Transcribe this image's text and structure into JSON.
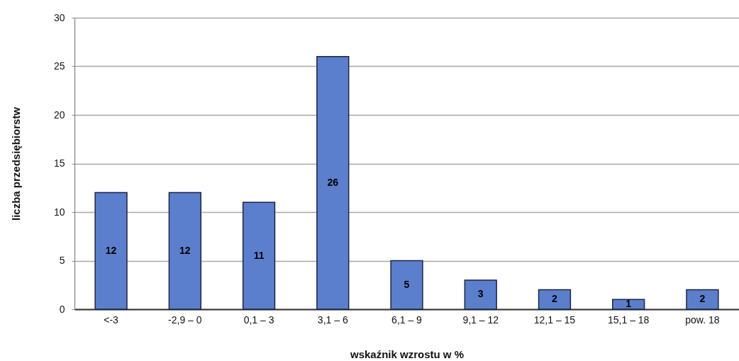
{
  "chart_data": {
    "type": "bar",
    "xlabel": "wskaźnik wzrostu w %",
    "ylabel": "liczba przedsiębiorstw",
    "categories": [
      "<-3",
      "-2,9 – 0",
      "0,1 – 3",
      "3,1 – 6",
      "6,1 – 9",
      "9,1 – 12",
      "12,1 – 15",
      "15,1 – 18",
      "pow. 18"
    ],
    "values": [
      12,
      12,
      11,
      26,
      5,
      3,
      2,
      1,
      2
    ],
    "color": "#5b7fcc",
    "ylim": [
      0,
      30
    ],
    "yticks": [
      0,
      5,
      10,
      15,
      20,
      25,
      30
    ],
    "grid": "y",
    "data_labels": true
  }
}
